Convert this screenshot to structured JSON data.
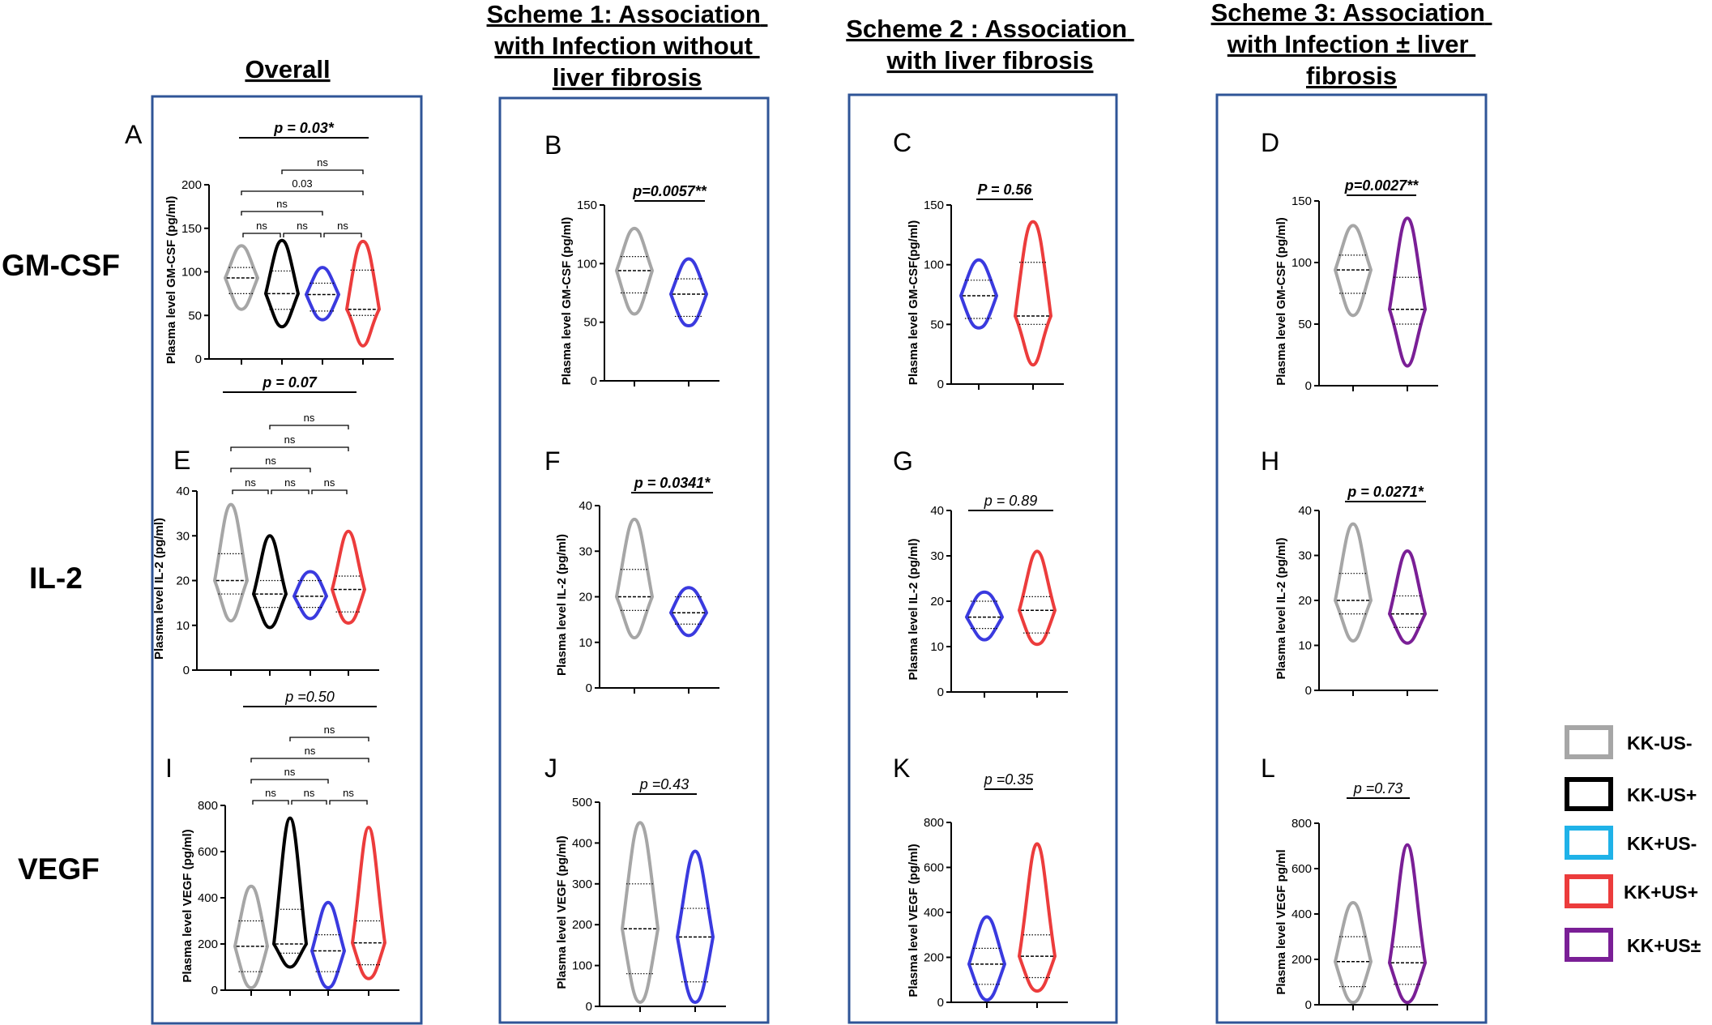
{
  "colors": {
    "KK-US-": "#a6a6a6",
    "KK-US+": "#000000",
    "KK+US-_legend": "#1fb2e8",
    "KK+US-": "#3a3adf",
    "KK+US+": "#ec3c3c",
    "KK+US±": "#7a1f96",
    "frame": "#2f5597"
  },
  "headers": [
    {
      "lines": [
        "Overall"
      ]
    },
    {
      "lines": [
        "Scheme 1: Association",
        "with Infection without",
        "liver fibrosis"
      ]
    },
    {
      "lines": [
        "Scheme 2 : Association",
        "with liver fibrosis"
      ]
    },
    {
      "lines": [
        "Scheme 3: Association",
        "with Infection ± liver",
        "fibrosis"
      ]
    }
  ],
  "row_labels": [
    "GM-CSF",
    "IL-2",
    "VEGF"
  ],
  "legend": [
    {
      "label": "KK-US-",
      "color": "#a6a6a6"
    },
    {
      "label": "KK-US+",
      "color": "#000000"
    },
    {
      "label": "KK+US-",
      "color": "#1fb2e8"
    },
    {
      "label": "KK+US+",
      "color": "#ec3c3c"
    },
    {
      "label": "KK+US±",
      "color": "#7a1f96"
    }
  ],
  "chart_data": [
    {
      "panel": "A",
      "type": "violin",
      "ylabel": "Plasma level GM-CSF (pg/ml)",
      "ylim": [
        0,
        200
      ],
      "yticks": [
        0,
        50,
        100,
        150,
        200
      ],
      "groups": [
        {
          "name": "KK-US-",
          "color": "#a6a6a6",
          "min": 57,
          "max": 130,
          "q1": 75,
          "median": 93,
          "q3": 105
        },
        {
          "name": "KK-US+",
          "color": "#000000",
          "min": 37,
          "max": 136,
          "q1": 57,
          "median": 75,
          "q3": 101
        },
        {
          "name": "KK+US-",
          "color": "#3a3adf",
          "min": 45,
          "max": 105,
          "q1": 55,
          "median": 74,
          "q3": 87
        },
        {
          "name": "KK+US+",
          "color": "#ec3c3c",
          "min": 15,
          "max": 135,
          "q1": 50,
          "median": 57,
          "q3": 102
        }
      ],
      "overall_p": "p = 0.03*",
      "pairwise": [
        {
          "from": 1,
          "to": 3,
          "text": "ns"
        },
        {
          "from": 0,
          "to": 3,
          "text": "0.03"
        },
        {
          "from": 0,
          "to": 2,
          "text": "ns"
        },
        {
          "from": 0,
          "to": 1,
          "text": "ns"
        },
        {
          "from": 1,
          "to": 2,
          "text": "ns"
        },
        {
          "from": 2,
          "to": 3,
          "text": "ns"
        }
      ]
    },
    {
      "panel": "B",
      "type": "violin",
      "ylabel": "Plasma level GM-CSF (pg/ml)",
      "ylim": [
        0,
        150
      ],
      "yticks": [
        0,
        50,
        100,
        150
      ],
      "groups": [
        {
          "name": "KK-US-",
          "color": "#a6a6a6",
          "min": 57,
          "max": 130,
          "q1": 75,
          "median": 94,
          "q3": 106
        },
        {
          "name": "KK+US-",
          "color": "#3a3adf",
          "min": 47,
          "max": 104,
          "q1": 55,
          "median": 74,
          "q3": 87
        }
      ],
      "overall_p": "p=0.0057**"
    },
    {
      "panel": "C",
      "type": "violin",
      "ylabel": "Plasma level GM-CSF(pg/ml)",
      "ylim": [
        0,
        150
      ],
      "yticks": [
        0,
        50,
        100,
        150
      ],
      "groups": [
        {
          "name": "KK+US-",
          "color": "#3a3adf",
          "min": 47,
          "max": 104,
          "q1": 55,
          "median": 74,
          "q3": 87
        },
        {
          "name": "KK+US+",
          "color": "#ec3c3c",
          "min": 16,
          "max": 136,
          "q1": 50,
          "median": 57,
          "q3": 102
        }
      ],
      "overall_p": "P = 0.56"
    },
    {
      "panel": "D",
      "type": "violin",
      "ylabel": "Plasma level GM-CSF (pg/ml)",
      "ylim": [
        0,
        150
      ],
      "yticks": [
        0,
        50,
        100,
        150
      ],
      "groups": [
        {
          "name": "KK-US-",
          "color": "#a6a6a6",
          "min": 57,
          "max": 130,
          "q1": 75,
          "median": 94,
          "q3": 106
        },
        {
          "name": "KK+US±",
          "color": "#7a1f96",
          "min": 16,
          "max": 136,
          "q1": 50,
          "median": 62,
          "q3": 88
        }
      ],
      "overall_p": "p=0.0027**"
    },
    {
      "panel": "E",
      "type": "violin",
      "ylabel": "Plasma level IL-2 (pg/ml)",
      "ylim": [
        0,
        40
      ],
      "yticks": [
        0,
        10,
        20,
        30,
        40
      ],
      "groups": [
        {
          "name": "KK-US-",
          "color": "#a6a6a6",
          "min": 11,
          "max": 37,
          "q1": 17,
          "median": 20,
          "q3": 26
        },
        {
          "name": "KK-US+",
          "color": "#000000",
          "min": 9.5,
          "max": 30,
          "q1": 14,
          "median": 17,
          "q3": 20
        },
        {
          "name": "KK+US-",
          "color": "#3a3adf",
          "min": 11.5,
          "max": 22,
          "q1": 14,
          "median": 16.5,
          "q3": 20
        },
        {
          "name": "KK+US+",
          "color": "#ec3c3c",
          "min": 10.5,
          "max": 31,
          "q1": 13,
          "median": 18,
          "q3": 21
        }
      ],
      "overall_p": "p = 0.07",
      "pairwise": [
        {
          "from": 1,
          "to": 3,
          "text": "ns"
        },
        {
          "from": 0,
          "to": 3,
          "text": "ns"
        },
        {
          "from": 0,
          "to": 2,
          "text": "ns"
        },
        {
          "from": 0,
          "to": 1,
          "text": "ns"
        },
        {
          "from": 1,
          "to": 2,
          "text": "ns"
        },
        {
          "from": 2,
          "to": 3,
          "text": "ns"
        }
      ]
    },
    {
      "panel": "F",
      "type": "violin",
      "ylabel": "Plasma level IL-2 (pg/ml)",
      "ylim": [
        0,
        40
      ],
      "yticks": [
        0,
        10,
        20,
        30,
        40
      ],
      "groups": [
        {
          "name": "KK-US-",
          "color": "#a6a6a6",
          "min": 11,
          "max": 37,
          "q1": 17,
          "median": 20,
          "q3": 26
        },
        {
          "name": "KK+US-",
          "color": "#3a3adf",
          "min": 11.5,
          "max": 22,
          "q1": 14,
          "median": 16.5,
          "q3": 20
        }
      ],
      "overall_p": "p = 0.0341*"
    },
    {
      "panel": "G",
      "type": "violin",
      "ylabel": "Plasma level IL-2 (pg/ml)",
      "ylim": [
        0,
        40
      ],
      "yticks": [
        0,
        10,
        20,
        30,
        40
      ],
      "groups": [
        {
          "name": "KK+US-",
          "color": "#3a3adf",
          "min": 11.5,
          "max": 22,
          "q1": 14,
          "median": 16.5,
          "q3": 20
        },
        {
          "name": "KK+US+",
          "color": "#ec3c3c",
          "min": 10.5,
          "max": 31,
          "q1": 13,
          "median": 18,
          "q3": 21
        }
      ],
      "overall_p": "p = 0.89"
    },
    {
      "panel": "H",
      "type": "violin",
      "ylabel": "Plasma level IL-2 (pg/ml)",
      "ylim": [
        0,
        40
      ],
      "yticks": [
        0,
        10,
        20,
        30,
        40
      ],
      "groups": [
        {
          "name": "KK-US-",
          "color": "#a6a6a6",
          "min": 11,
          "max": 37,
          "q1": 17,
          "median": 20,
          "q3": 26
        },
        {
          "name": "KK+US±",
          "color": "#7a1f96",
          "min": 10.5,
          "max": 31,
          "q1": 14,
          "median": 17,
          "q3": 21
        }
      ],
      "overall_p": "p = 0.0271*"
    },
    {
      "panel": "I",
      "type": "violin",
      "ylabel": "Plasma level VEGF (pg/ml)",
      "ylim": [
        0,
        800
      ],
      "yticks": [
        0,
        200,
        400,
        600,
        800
      ],
      "groups": [
        {
          "name": "KK-US-",
          "color": "#a6a6a6",
          "min": 10,
          "max": 450,
          "q1": 80,
          "median": 190,
          "q3": 300
        },
        {
          "name": "KK-US+",
          "color": "#000000",
          "min": 100,
          "max": 745,
          "q1": 160,
          "median": 200,
          "q3": 350
        },
        {
          "name": "KK+US-",
          "color": "#3a3adf",
          "min": 10,
          "max": 380,
          "q1": 80,
          "median": 170,
          "q3": 240
        },
        {
          "name": "KK+US+",
          "color": "#ec3c3c",
          "min": 50,
          "max": 705,
          "q1": 110,
          "median": 205,
          "q3": 300
        }
      ],
      "overall_p": "p =0.50",
      "pairwise": [
        {
          "from": 1,
          "to": 3,
          "text": "ns"
        },
        {
          "from": 0,
          "to": 3,
          "text": "ns"
        },
        {
          "from": 0,
          "to": 2,
          "text": "ns"
        },
        {
          "from": 0,
          "to": 1,
          "text": "ns"
        },
        {
          "from": 1,
          "to": 2,
          "text": "ns"
        },
        {
          "from": 2,
          "to": 3,
          "text": "ns"
        }
      ]
    },
    {
      "panel": "J",
      "type": "violin",
      "ylabel": "Plasma level VEGF (pg/ml)",
      "ylim": [
        0,
        500
      ],
      "yticks": [
        0,
        100,
        200,
        300,
        400,
        500
      ],
      "groups": [
        {
          "name": "KK-US-",
          "color": "#a6a6a6",
          "min": 10,
          "max": 450,
          "q1": 80,
          "median": 190,
          "q3": 300
        },
        {
          "name": "KK+US-",
          "color": "#3a3adf",
          "min": 10,
          "max": 380,
          "q1": 60,
          "median": 170,
          "q3": 240
        }
      ],
      "overall_p": "p =0.43"
    },
    {
      "panel": "K",
      "type": "violin",
      "ylabel": "Plasma level VEGF (pg/ml)",
      "ylim": [
        0,
        800
      ],
      "yticks": [
        0,
        200,
        400,
        600,
        800
      ],
      "groups": [
        {
          "name": "KK+US-",
          "color": "#3a3adf",
          "min": 10,
          "max": 380,
          "q1": 80,
          "median": 170,
          "q3": 240
        },
        {
          "name": "KK+US+",
          "color": "#ec3c3c",
          "min": 50,
          "max": 705,
          "q1": 110,
          "median": 205,
          "q3": 300
        }
      ],
      "overall_p": "p =0.35"
    },
    {
      "panel": "L",
      "type": "violin",
      "ylabel": "Plasma level VEGF pg/ml",
      "ylim": [
        0,
        800
      ],
      "yticks": [
        0,
        200,
        400,
        600,
        800
      ],
      "groups": [
        {
          "name": "KK-US-",
          "color": "#a6a6a6",
          "min": 10,
          "max": 450,
          "q1": 80,
          "median": 190,
          "q3": 300
        },
        {
          "name": "KK+US±",
          "color": "#7a1f96",
          "min": 10,
          "max": 705,
          "q1": 90,
          "median": 185,
          "q3": 255
        }
      ],
      "overall_p": "p =0.73"
    }
  ]
}
